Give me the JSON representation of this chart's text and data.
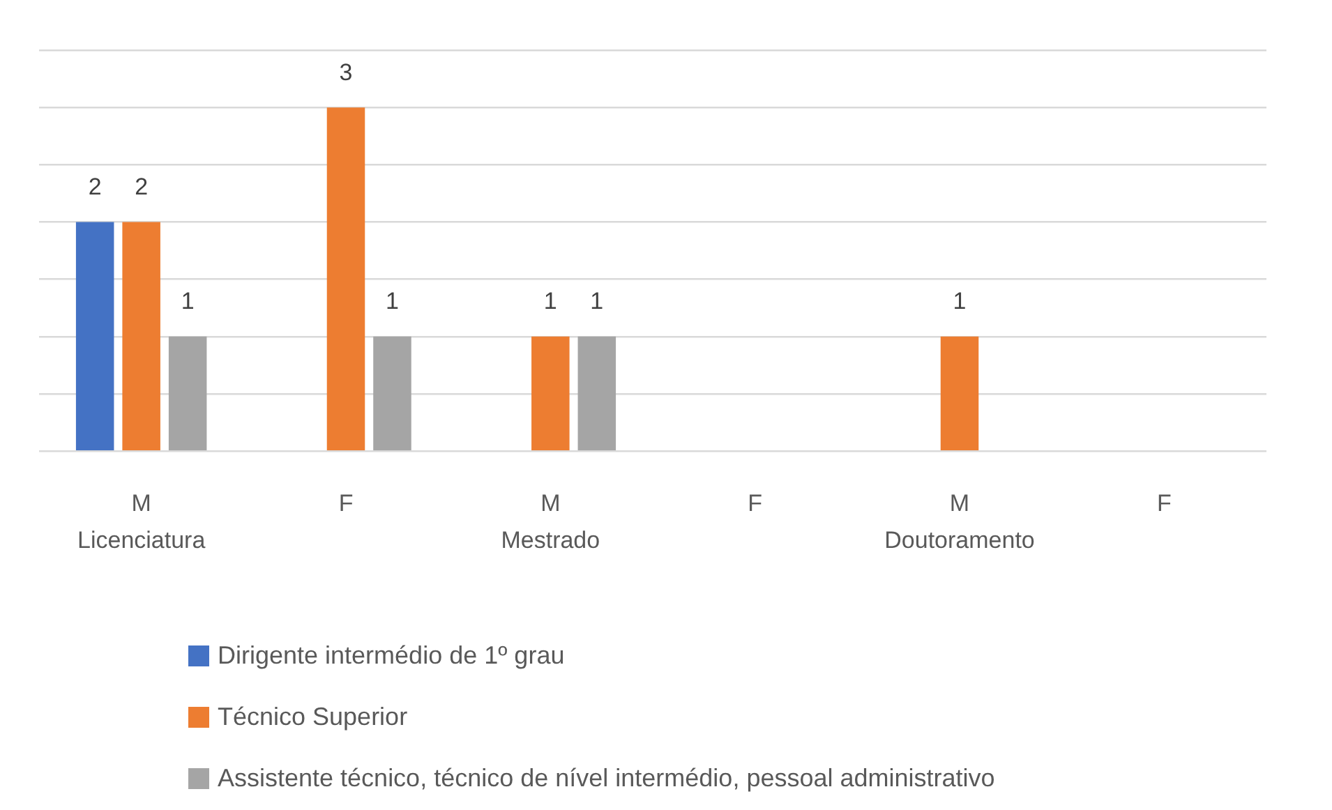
{
  "chart_data": {
    "type": "bar",
    "categories": [
      "M",
      "F",
      "M",
      "F",
      "M",
      "F"
    ],
    "annotations": [
      "Licenciatura",
      "Mestrado",
      "Doutoramento"
    ],
    "series": [
      {
        "name": "Dirigente intermédio de 1º grau",
        "color": "#4472c4",
        "values": [
          2,
          null,
          null,
          null,
          null,
          null
        ]
      },
      {
        "name": "Técnico Superior",
        "color": "#ed7d31",
        "values": [
          2,
          3,
          1,
          null,
          1,
          null
        ]
      },
      {
        "name": "Assistente técnico, técnico de nível intermédio, pessoal administrativo",
        "color": "#a5a5a5",
        "values": [
          1,
          1,
          1,
          null,
          null,
          null
        ]
      }
    ],
    "ylim": [
      0,
      3.5
    ],
    "yticks": [
      {
        "value": 0,
        "label": null
      },
      {
        "value": 0.5,
        "label": null
      },
      {
        "value": 1,
        "label": null
      },
      {
        "value": 1.5,
        "label": null
      },
      {
        "value": 2,
        "label": null
      },
      {
        "value": 2.5,
        "label": null
      },
      {
        "value": 3,
        "label": null
      },
      {
        "value": 3.5,
        "label": null
      }
    ],
    "tick_labels": "x",
    "grid": "y",
    "data_labels": true,
    "legend": "bottom"
  }
}
